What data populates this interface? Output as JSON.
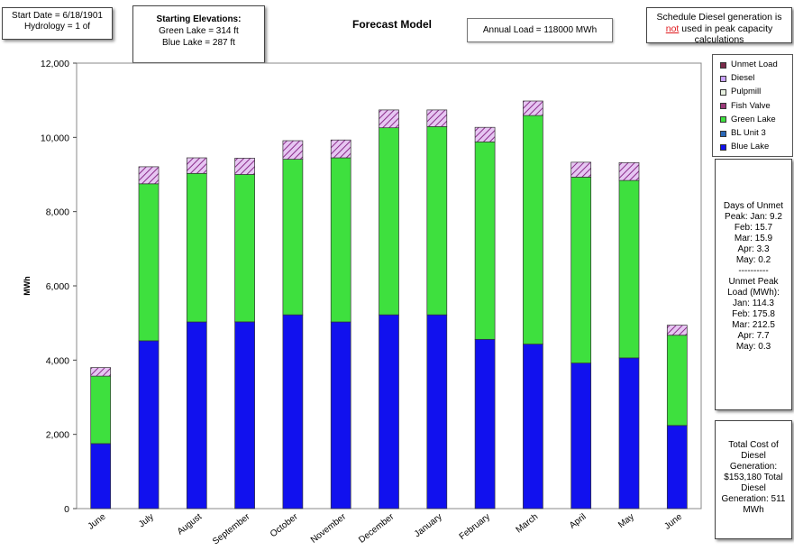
{
  "header": {
    "start_date": "Start Date = 6/18/1901",
    "hydrology": "Hydrology = 1 of",
    "elev_title": "Starting Elevations:",
    "elev_green": "Green Lake = 314 ft",
    "elev_blue": "Blue Lake = 287 ft",
    "title": "Forecast Model",
    "annual_load": "Annual Load = 118000 MWh",
    "note_pre": "Schedule Diesel generation is",
    "note_red": "not",
    "note_post": "used in peak capacity calculations"
  },
  "legend": {
    "items": [
      {
        "label": "Unmet Load",
        "color": "#7a2a4a"
      },
      {
        "label": "Diesel",
        "color": "#c9a3ff"
      },
      {
        "label": "Pulpmill",
        "color": "#e7f0e0"
      },
      {
        "label": "Fish Valve",
        "color": "#9b3a7a"
      },
      {
        "label": "Green Lake",
        "color": "#3ee03e"
      },
      {
        "label": "BL Unit 3",
        "color": "#2a68b8"
      },
      {
        "label": "Blue Lake",
        "color": "#1111ee"
      }
    ]
  },
  "days_box": {
    "lines": [
      "Days of Unmet",
      "Peak: Jan: 9.2",
      "Feb: 15.7",
      "Mar: 15.9",
      "Apr: 3.3",
      "May: 0.2",
      "----------",
      "Unmet Peak",
      "Load (MWh):",
      "Jan: 114.3",
      "Feb: 175.8",
      "Mar: 212.5",
      "Apr: 7.7",
      "May: 0.3"
    ]
  },
  "cost_box": {
    "lines": [
      "Total Cost of",
      "Diesel",
      "Generation:",
      "$153,180   Total",
      "Diesel",
      "Generation: 511",
      "MWh"
    ]
  },
  "chart_data": {
    "type": "bar",
    "stacked": true,
    "ylabel": "MWh",
    "ylim": [
      0,
      12000
    ],
    "yticks": [
      "0",
      "2,000",
      "4,000",
      "6,000",
      "8,000",
      "10,000",
      "12,000"
    ],
    "categories": [
      "June",
      "July",
      "August",
      "September",
      "October",
      "November",
      "December",
      "January",
      "February",
      "March",
      "April",
      "May",
      "June"
    ],
    "series": [
      {
        "name": "Blue Lake",
        "color": "#1111ee",
        "values": [
          1750,
          4520,
          5030,
          5030,
          5220,
          5030,
          5220,
          5220,
          4560,
          4430,
          3920,
          4060,
          2240
        ]
      },
      {
        "name": "Green Lake",
        "color": "#3ee03e",
        "values": [
          1820,
          4230,
          4000,
          3970,
          4190,
          4420,
          5040,
          5070,
          5320,
          6160,
          5010,
          4780,
          2430
        ]
      },
      {
        "name": "Fish Valve",
        "color": "#9b3a7a",
        "pattern": "hatch",
        "values": [
          230,
          460,
          420,
          440,
          500,
          480,
          480,
          450,
          390,
          390,
          400,
          480,
          270
        ]
      }
    ],
    "grid": false,
    "legend_position": "right"
  }
}
